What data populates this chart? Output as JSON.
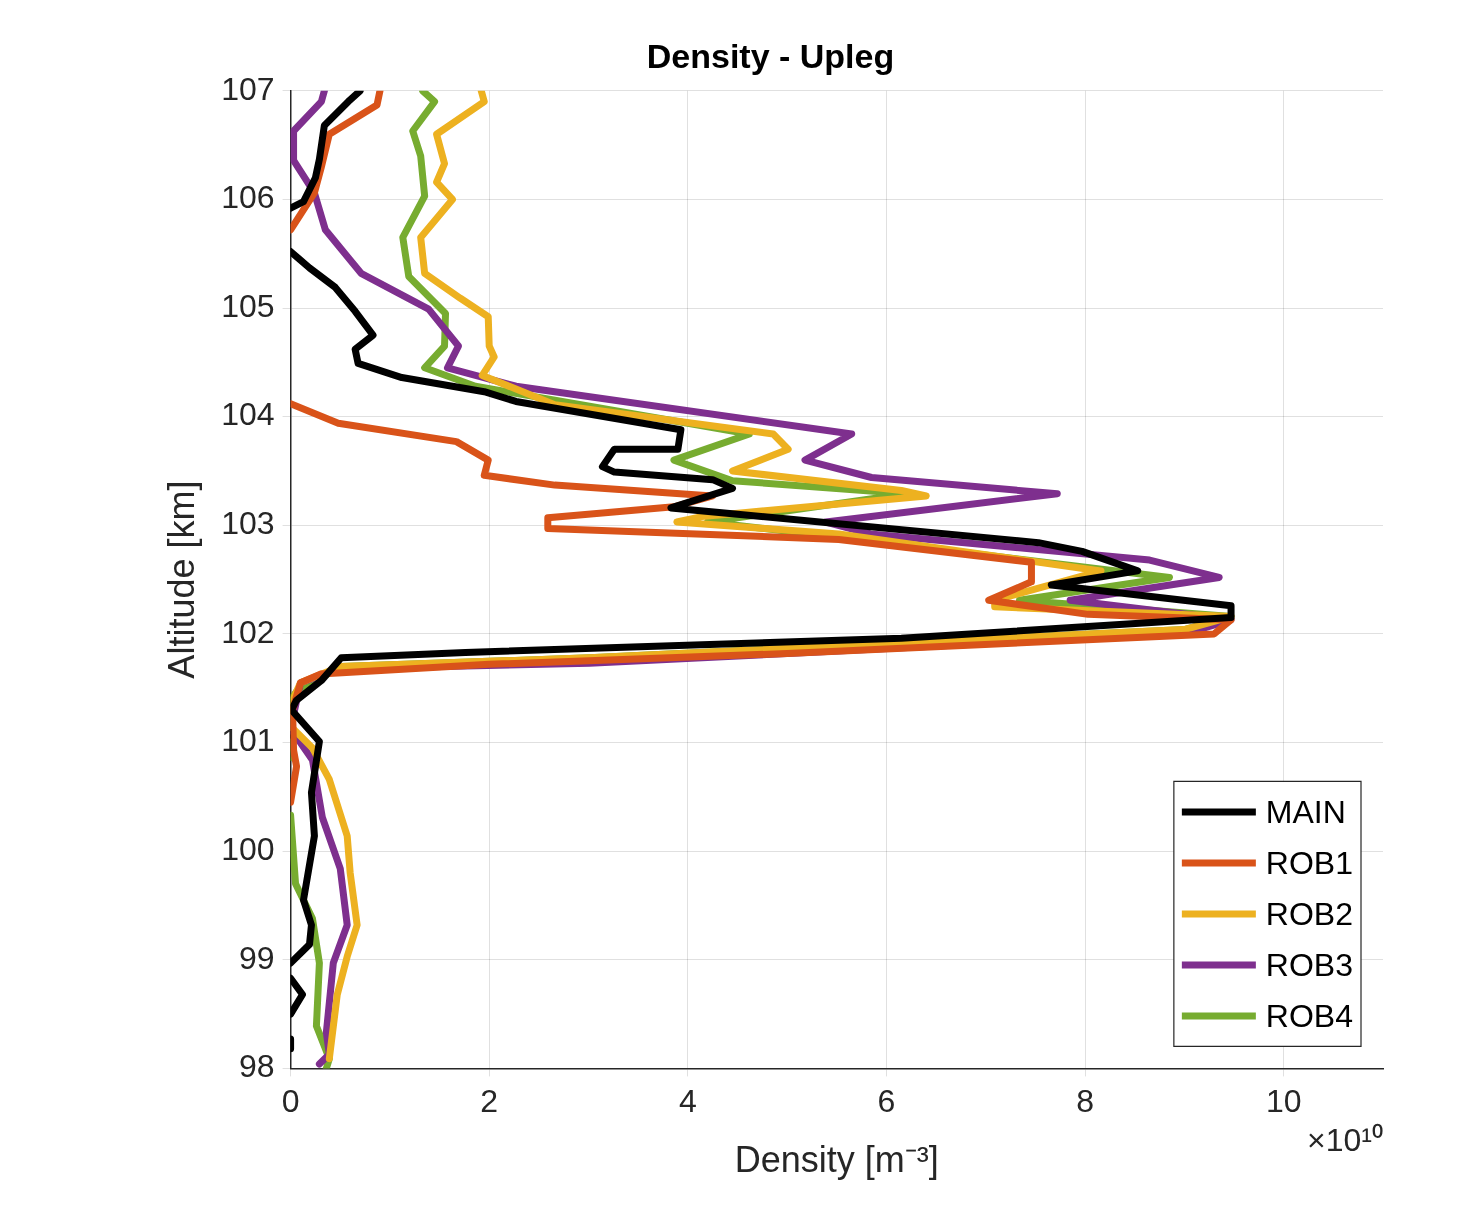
{
  "chart_data": {
    "type": "line",
    "title": "Density - Upleg",
    "xlabel": "Density [m⁻³]",
    "ylabel": "Altitude [km]",
    "annotations": [
      "×10¹⁰"
    ],
    "xlim": [
      0,
      11
    ],
    "xticks": [
      0,
      2,
      4,
      6,
      8,
      10
    ],
    "ylim": [
      98,
      107
    ],
    "yticks": [
      98,
      99,
      100,
      101,
      102,
      103,
      104,
      105,
      106,
      107
    ],
    "grid": true,
    "legend": "bottom right",
    "marker": "none",
    "line_style": "solid",
    "series": [
      {
        "name": "MAIN",
        "color": "#000000",
        "x": [
          0.7,
          0.58,
          0.34,
          0.29,
          0.25,
          0.13,
          0,
          null,
          0,
          0.19,
          0.45,
          0.65,
          0.83,
          0.65,
          0.68,
          1.12,
          1.95,
          2.27,
          3.93,
          3.9,
          3.26,
          3.14,
          3.26,
          4.25,
          4.45,
          3.83,
          7.53,
          7.97,
          8.53,
          7.66,
          9.47,
          9.47,
          6.15,
          1.76,
          0.51,
          0.31,
          0.06,
          0.01,
          0.29,
          0.21,
          0.24,
          0.13,
          0.21,
          0.19,
          0,
          null,
          0,
          0.12,
          0,
          null,
          0,
          0
        ],
        "values": [
          107.0,
          106.9,
          106.68,
          106.37,
          106.2,
          105.98,
          105.92,
          null,
          105.52,
          105.37,
          105.19,
          104.97,
          104.75,
          104.62,
          104.49,
          104.36,
          104.23,
          104.14,
          103.88,
          103.7,
          103.7,
          103.54,
          103.49,
          103.42,
          103.34,
          103.16,
          102.84,
          102.76,
          102.58,
          102.45,
          102.26,
          102.15,
          101.96,
          101.83,
          101.78,
          101.57,
          101.39,
          101.3,
          101.01,
          100.54,
          100.14,
          99.55,
          99.32,
          99.14,
          98.97,
          null,
          98.83,
          98.68,
          98.5,
          null,
          98.27,
          98.18
        ]
      },
      {
        "name": "ROB1",
        "color": "#d95319",
        "x": [
          0.9,
          0.87,
          0.39,
          0.31,
          0.24,
          0,
          null,
          0,
          0.48,
          1.67,
          1.99,
          1.95,
          2.66,
          4.25,
          3.86,
          2.59,
          2.59,
          5.52,
          7.46,
          7.46,
          7.03,
          8.03,
          9.47,
          9.3,
          5.0,
          2.0,
          0.3,
          0.1,
          0.02,
          0.03,
          0.06,
          0
        ],
        "values": [
          107.0,
          106.87,
          106.6,
          106.3,
          106.06,
          105.72,
          null,
          104.12,
          103.94,
          103.77,
          103.6,
          103.46,
          103.37,
          103.27,
          103.17,
          103.07,
          102.97,
          102.87,
          102.66,
          102.48,
          102.31,
          102.18,
          102.13,
          102.0,
          101.82,
          101.72,
          101.63,
          101.55,
          101.3,
          100.93,
          100.78,
          100.45
        ]
      },
      {
        "name": "ROB2",
        "color": "#edb120",
        "x": [
          1.92,
          1.95,
          1.47,
          1.55,
          1.47,
          1.63,
          1.31,
          1.35,
          1.71,
          1.99,
          2.0,
          2.05,
          1.93,
          2.66,
          4.86,
          5.01,
          4.45,
          6.15,
          6.4,
          4.14,
          3.89,
          5.52,
          8.16,
          7.09,
          7.09,
          9.47,
          9.0,
          3.01,
          0.5,
          0.1,
          0,
          0,
          0.22,
          0.39,
          0.57,
          0.6,
          0.67,
          0.57,
          0.47,
          0.39
        ],
        "values": [
          107.0,
          106.9,
          106.6,
          106.33,
          106.16,
          106.0,
          105.65,
          105.32,
          105.09,
          104.92,
          104.65,
          104.55,
          104.38,
          104.11,
          103.84,
          103.7,
          103.5,
          103.32,
          103.27,
          103.08,
          103.03,
          102.92,
          102.58,
          102.31,
          102.25,
          102.16,
          102.04,
          101.78,
          101.7,
          101.55,
          101.35,
          101.15,
          100.95,
          100.66,
          100.14,
          99.8,
          99.32,
          99.03,
          98.68,
          98.09
        ]
      },
      {
        "name": "ROB3",
        "color": "#7e2f8e",
        "x": [
          0.34,
          0.31,
          0.03,
          0.03,
          0.24,
          0.35,
          0.71,
          1.39,
          1.69,
          1.58,
          2.27,
          5.65,
          5.18,
          5.85,
          7.72,
          5.39,
          5.84,
          8.65,
          9.35,
          7.85,
          9.47,
          9.0,
          3.01,
          0.51,
          0.1,
          0,
          0.22,
          0.32,
          0.5,
          0.57,
          0.43,
          0.36,
          0.39,
          0.29
        ],
        "values": [
          107.0,
          106.9,
          106.63,
          106.36,
          106.06,
          105.72,
          105.32,
          104.99,
          104.65,
          104.45,
          104.28,
          103.84,
          103.6,
          103.44,
          103.29,
          103.03,
          102.92,
          102.68,
          102.52,
          102.31,
          102.13,
          102.0,
          101.73,
          101.68,
          101.55,
          101.13,
          100.84,
          100.31,
          99.84,
          99.32,
          98.97,
          98.33,
          98.13,
          98.04
        ]
      },
      {
        "name": "ROB4",
        "color": "#77ac30",
        "x": [
          1.33,
          1.45,
          1.23,
          1.31,
          1.35,
          1.13,
          1.19,
          1.56,
          1.55,
          1.35,
          1.86,
          4.62,
          3.86,
          4.45,
          6.21,
          4.2,
          5.52,
          8.85,
          7.34,
          9.47,
          9.0,
          3.01,
          0.51,
          0.06,
          0,
          null,
          0.02,
          0.02,
          null,
          0,
          0.05,
          0.22,
          0.29,
          0.26,
          0.39,
          0.36
        ],
        "values": [
          107.0,
          106.9,
          106.63,
          106.4,
          106.03,
          105.65,
          105.29,
          104.95,
          104.65,
          104.45,
          104.28,
          103.84,
          103.6,
          103.41,
          103.29,
          103.03,
          102.89,
          102.52,
          102.31,
          102.16,
          102.04,
          101.78,
          101.7,
          101.47,
          101.39,
          null,
          101.01,
          100.86,
          null,
          100.33,
          99.7,
          99.38,
          98.97,
          98.39,
          98.09,
          98.0
        ]
      }
    ]
  }
}
